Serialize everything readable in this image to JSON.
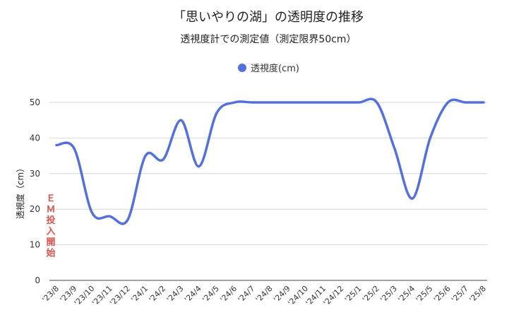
{
  "chart_data": {
    "type": "line",
    "title": "「思いやりの湖」の透明度の推移",
    "subtitle": "透視度計での測定値（測定限界50cm）",
    "xlabel": "",
    "ylabel": "透視度（cm）",
    "ylim": [
      0,
      50
    ],
    "yticks": [
      "0",
      "10",
      "20",
      "30",
      "40",
      "50"
    ],
    "grid": true,
    "legend_position": "top-center",
    "categories": [
      "'23/8",
      "'23/9",
      "'23/10",
      "'23/11",
      "'23/12",
      "'24/1",
      "'24/2",
      "'24/3",
      "'24/4",
      "'24/5",
      "'24/6",
      "'24/7",
      "'24/8",
      "'24/9",
      "'24/10",
      "'24/11",
      "'24/12",
      "'25/1",
      "'25/2",
      "'25/3",
      "'25/4",
      "'25/5",
      "'25/6",
      "'25/7",
      "'25/8"
    ],
    "series": [
      {
        "name": "透視度(cm)",
        "color": "#5470dc",
        "values": [
          38,
          37,
          19,
          18,
          17,
          35,
          34,
          45,
          32,
          47,
          50,
          50,
          50,
          50,
          50,
          50,
          50,
          50,
          50,
          37,
          23,
          40,
          50,
          50,
          50
        ]
      }
    ],
    "annotation": {
      "text": "ＥＭ投入開始",
      "chars": [
        "Ｅ",
        "Ｍ",
        "投",
        "入",
        "開",
        "始"
      ],
      "color": "#d9534f"
    }
  }
}
